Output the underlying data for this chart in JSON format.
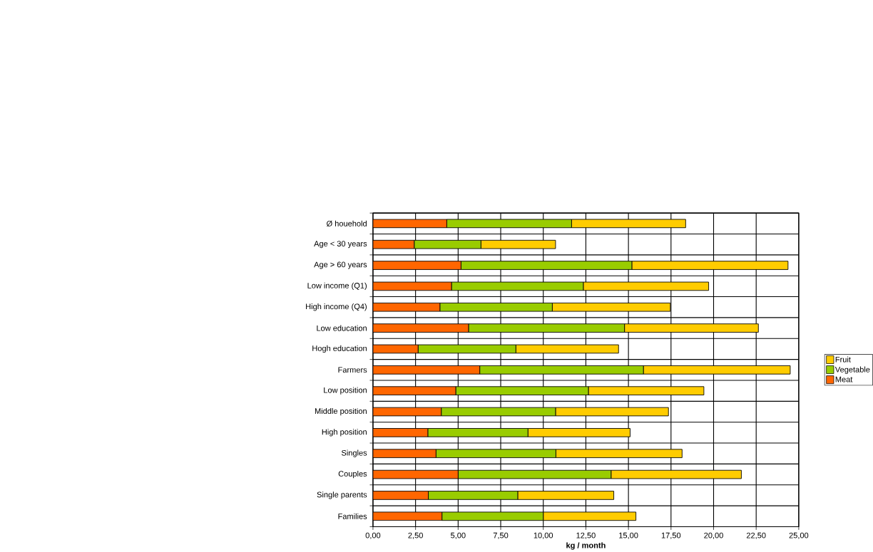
{
  "chart_data": {
    "type": "bar",
    "orientation": "horizontal",
    "stacked": true,
    "xlabel": "kg / month",
    "categories": [
      "Ø houehold",
      "Age < 30 years",
      "Age > 60 years",
      "Low income (Q1)",
      "High income (Q4)",
      "Low education",
      "Hogh education",
      "Farmers",
      "Low position",
      "Middle position",
      "High position",
      "Singles",
      "Couples",
      "Single parents",
      "Families"
    ],
    "series": [
      {
        "name": "Meat",
        "color": "#ff6600",
        "values": [
          4.33,
          2.42,
          5.17,
          4.61,
          3.93,
          5.61,
          2.65,
          6.27,
          4.86,
          4.01,
          3.22,
          3.7,
          5.0,
          3.25,
          4.05
        ]
      },
      {
        "name": "Vegetable",
        "color": "#99cc00",
        "values": [
          7.33,
          3.92,
          10.03,
          7.74,
          6.6,
          9.16,
          5.74,
          9.61,
          7.79,
          6.71,
          5.88,
          7.04,
          8.98,
          5.25,
          5.95
        ]
      },
      {
        "name": "Fruit",
        "color": "#ffcc00",
        "values": [
          6.7,
          4.38,
          9.17,
          7.36,
          6.93,
          7.86,
          6.03,
          8.62,
          6.78,
          6.63,
          6.0,
          7.41,
          7.65,
          5.64,
          5.44
        ]
      }
    ],
    "xlim": [
      0,
      25
    ],
    "xticks": [
      {
        "value": 0,
        "label": "0,00"
      },
      {
        "value": 2.5,
        "label": "2,50"
      },
      {
        "value": 5,
        "label": "5,00"
      },
      {
        "value": 7.5,
        "label": "7,50"
      },
      {
        "value": 10,
        "label": "10,00"
      },
      {
        "value": 12.5,
        "label": "12,50"
      },
      {
        "value": 15,
        "label": "15,00"
      },
      {
        "value": 17.5,
        "label": "17,50"
      },
      {
        "value": 20,
        "label": "20,00"
      },
      {
        "value": 22.5,
        "label": "22,50"
      },
      {
        "value": 25,
        "label": "25,00"
      }
    ],
    "grid": true,
    "legend": "right"
  }
}
